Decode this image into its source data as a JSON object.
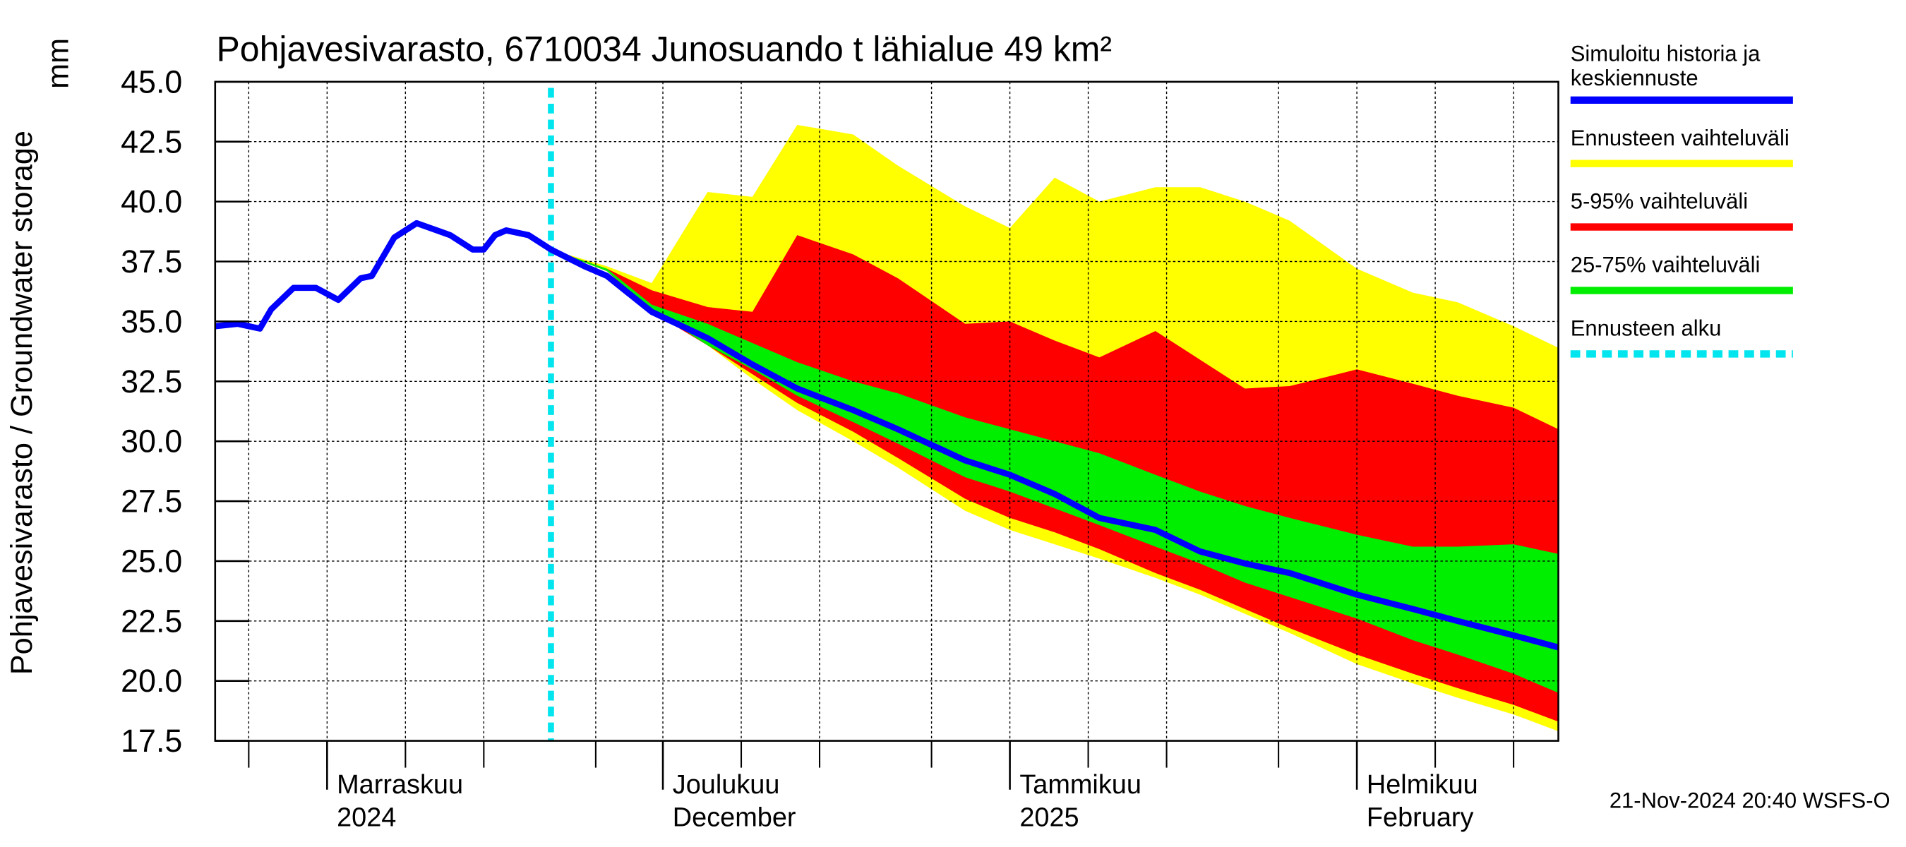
{
  "chart_data": {
    "type": "line",
    "title": "Pohjavesivarasto, 6710034 Junosuando t lähialue 49 km²",
    "ylabel": "Pohjavesivarasto / Groundwater storage",
    "yunit": "mm",
    "footer": "21-Nov-2024 20:40 WSFS-O",
    "xlim": [
      0,
      120
    ],
    "xticks": [
      {
        "value": 10,
        "label": "Marraskuu"
      },
      {
        "value": 40,
        "label": "Joulukuu"
      },
      {
        "value": 71,
        "label": "Tammikuu"
      },
      {
        "value": 102,
        "label": "Helmikuu"
      }
    ],
    "xtick_sublabels": [
      "2024",
      "December",
      "2025",
      "February"
    ],
    "xminorticks": [
      3,
      10,
      17,
      24,
      34,
      40,
      47,
      54,
      64,
      71,
      78,
      85,
      95,
      102,
      109,
      116
    ],
    "ylim": [
      17.5,
      45
    ],
    "yticks": [
      17.5,
      {
        "value": 20,
        "label": "20.0"
      },
      22.5,
      {
        "value": 25,
        "label": "25.0"
      },
      27.5,
      {
        "value": 30,
        "label": "30.0"
      },
      32.5,
      {
        "value": 35,
        "label": "35.0"
      },
      37.5,
      {
        "value": 40,
        "label": "40.0"
      },
      42.5,
      {
        "value": 45,
        "label": "45.0"
      }
    ],
    "grid": true,
    "legend": "right",
    "band_x": [
      30,
      35,
      39,
      44,
      48,
      52,
      57,
      61,
      67,
      71,
      75,
      79,
      84,
      88,
      92,
      96,
      102,
      107,
      111,
      116,
      120
    ],
    "bands": [
      {
        "name": "Ennusteen vaihteluväli",
        "color": "#ffff00",
        "upper": [
          38.0,
          37.3,
          36.6,
          40.4,
          40.2,
          43.2,
          42.8,
          41.5,
          39.8,
          38.9,
          41.0,
          40.0,
          40.6,
          40.6,
          40.0,
          39.2,
          37.2,
          36.2,
          35.8,
          34.8,
          33.9
        ],
        "lower": [
          38.0,
          37.2,
          35.6,
          34.0,
          32.6,
          31.3,
          30.0,
          28.9,
          27.1,
          26.3,
          25.7,
          25.1,
          24.3,
          23.6,
          22.8,
          22.0,
          20.7,
          19.9,
          19.3,
          18.6,
          17.9
        ]
      },
      {
        "name": "5-95% vaihteluväli",
        "color": "#ff0000",
        "upper": [
          38.0,
          37.2,
          36.3,
          35.6,
          35.4,
          38.6,
          37.8,
          36.8,
          34.9,
          35.0,
          34.2,
          33.5,
          34.6,
          33.4,
          32.2,
          32.3,
          33.0,
          32.4,
          31.9,
          31.4,
          30.5
        ],
        "lower": [
          38.0,
          37.1,
          35.4,
          34.0,
          32.8,
          31.6,
          30.4,
          29.3,
          27.6,
          26.8,
          26.2,
          25.5,
          24.5,
          23.8,
          23.0,
          22.2,
          21.1,
          20.3,
          19.7,
          19.0,
          18.3
        ]
      },
      {
        "name": "25-75% vaihteluväli",
        "color": "#00ee00",
        "upper": [
          38.0,
          37.2,
          35.7,
          34.9,
          34.1,
          33.3,
          32.5,
          32.0,
          31.0,
          30.5,
          30.0,
          29.5,
          28.6,
          27.9,
          27.3,
          26.8,
          26.1,
          25.6,
          25.6,
          25.7,
          25.3
        ],
        "lower": [
          38.0,
          37.1,
          35.5,
          34.0,
          33.0,
          31.9,
          30.8,
          29.9,
          28.5,
          27.9,
          27.2,
          26.5,
          25.6,
          24.9,
          24.1,
          23.5,
          22.6,
          21.7,
          21.1,
          20.3,
          19.5
        ]
      }
    ],
    "series": [
      {
        "name": "Simuloitu historia ja keskiennuste",
        "color": "#0000ff",
        "x": [
          0,
          2,
          4,
          5,
          7,
          9,
          11,
          13,
          14,
          16,
          18,
          21,
          23,
          24,
          25,
          26,
          28,
          30,
          33,
          35,
          39,
          44,
          48,
          52,
          57,
          61,
          67,
          71,
          75,
          79,
          84,
          88,
          92,
          96,
          102,
          107,
          111,
          116,
          120
        ],
        "values": [
          34.8,
          34.9,
          34.7,
          35.5,
          36.4,
          36.4,
          35.9,
          36.8,
          36.9,
          38.5,
          39.1,
          38.6,
          38.0,
          38.0,
          38.6,
          38.8,
          38.6,
          38.0,
          37.3,
          36.9,
          35.4,
          34.3,
          33.2,
          32.2,
          31.3,
          30.5,
          29.2,
          28.6,
          27.8,
          26.8,
          26.3,
          25.4,
          24.9,
          24.5,
          23.6,
          23.0,
          22.5,
          21.9,
          21.4
        ]
      }
    ],
    "forecast_start": {
      "name": "Ennusteen alku",
      "x": 30,
      "color": "#00e5ee"
    }
  }
}
